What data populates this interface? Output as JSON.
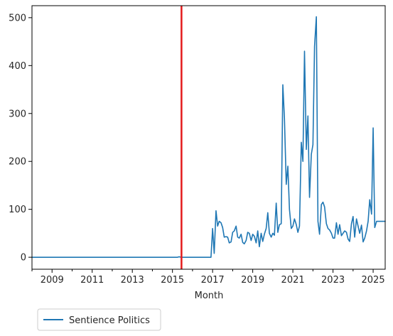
{
  "chart_data": {
    "type": "line",
    "title": "",
    "xlabel": "Month",
    "ylabel": "",
    "xlim": [
      2008.0,
      2025.6
    ],
    "ylim": [
      -25,
      525
    ],
    "x_ticks": [
      2009,
      2011,
      2013,
      2015,
      2017,
      2019,
      2021,
      2023,
      2025
    ],
    "x_tick_labels": [
      "2009",
      "2011",
      "2013",
      "2015",
      "2017",
      "2019",
      "2021",
      "2023",
      "2025"
    ],
    "y_ticks": [
      0,
      100,
      200,
      300,
      400,
      500
    ],
    "y_tick_labels": [
      "0",
      "100",
      "200",
      "300",
      "400",
      "500"
    ],
    "grid": false,
    "legend_position": "below-left",
    "vline": {
      "x": 2015.45,
      "color": "#e31a1c"
    },
    "series": [
      {
        "name": "Sentience Politics",
        "color": "#1f77b4",
        "x": [
          2008.0,
          2015.25,
          2015.33,
          2015.42,
          2016.92,
          2017.0,
          2017.08,
          2017.17,
          2017.25,
          2017.33,
          2017.42,
          2017.5,
          2017.58,
          2017.67,
          2017.75,
          2017.83,
          2017.92,
          2018.0,
          2018.08,
          2018.17,
          2018.25,
          2018.33,
          2018.42,
          2018.5,
          2018.58,
          2018.67,
          2018.75,
          2018.83,
          2018.92,
          2019.0,
          2019.08,
          2019.17,
          2019.25,
          2019.33,
          2019.42,
          2019.5,
          2019.58,
          2019.67,
          2019.75,
          2019.83,
          2019.92,
          2020.0,
          2020.08,
          2020.17,
          2020.25,
          2020.33,
          2020.42,
          2020.5,
          2020.58,
          2020.67,
          2020.75,
          2020.83,
          2020.92,
          2021.0,
          2021.08,
          2021.17,
          2021.25,
          2021.33,
          2021.42,
          2021.5,
          2021.58,
          2021.67,
          2021.75,
          2021.83,
          2021.92,
          2022.0,
          2022.08,
          2022.17,
          2022.25,
          2022.33,
          2022.42,
          2022.5,
          2022.58,
          2022.67,
          2022.75,
          2022.83,
          2022.92,
          2023.0,
          2023.08,
          2023.17,
          2023.25,
          2023.33,
          2023.42,
          2023.5,
          2023.58,
          2023.67,
          2023.75,
          2023.83,
          2023.92,
          2024.0,
          2024.08,
          2024.17,
          2024.25,
          2024.33,
          2024.42,
          2024.5,
          2024.58,
          2024.67,
          2024.75,
          2024.83,
          2024.92,
          2025.0,
          2025.08,
          2025.17,
          2025.25,
          2025.33,
          2025.42,
          2025.5,
          2025.6
        ],
        "values": [
          0,
          0,
          1,
          0,
          0,
          60,
          8,
          97,
          65,
          75,
          72,
          62,
          42,
          43,
          42,
          30,
          32,
          52,
          55,
          65,
          42,
          40,
          48,
          31,
          28,
          35,
          52,
          50,
          35,
          48,
          44,
          30,
          55,
          22,
          50,
          33,
          48,
          60,
          93,
          50,
          42,
          50,
          46,
          113,
          52,
          68,
          70,
          360,
          290,
          152,
          190,
          100,
          60,
          65,
          80,
          68,
          52,
          65,
          240,
          200,
          430,
          225,
          295,
          125,
          215,
          235,
          440,
          502,
          75,
          48,
          110,
          115,
          105,
          70,
          60,
          57,
          50,
          40,
          40,
          72,
          48,
          68,
          45,
          50,
          55,
          52,
          38,
          33,
          70,
          85,
          42,
          80,
          65,
          50,
          67,
          32,
          40,
          55,
          75,
          120,
          90,
          270,
          62,
          75,
          75,
          75,
          75,
          75,
          75
        ]
      }
    ]
  }
}
